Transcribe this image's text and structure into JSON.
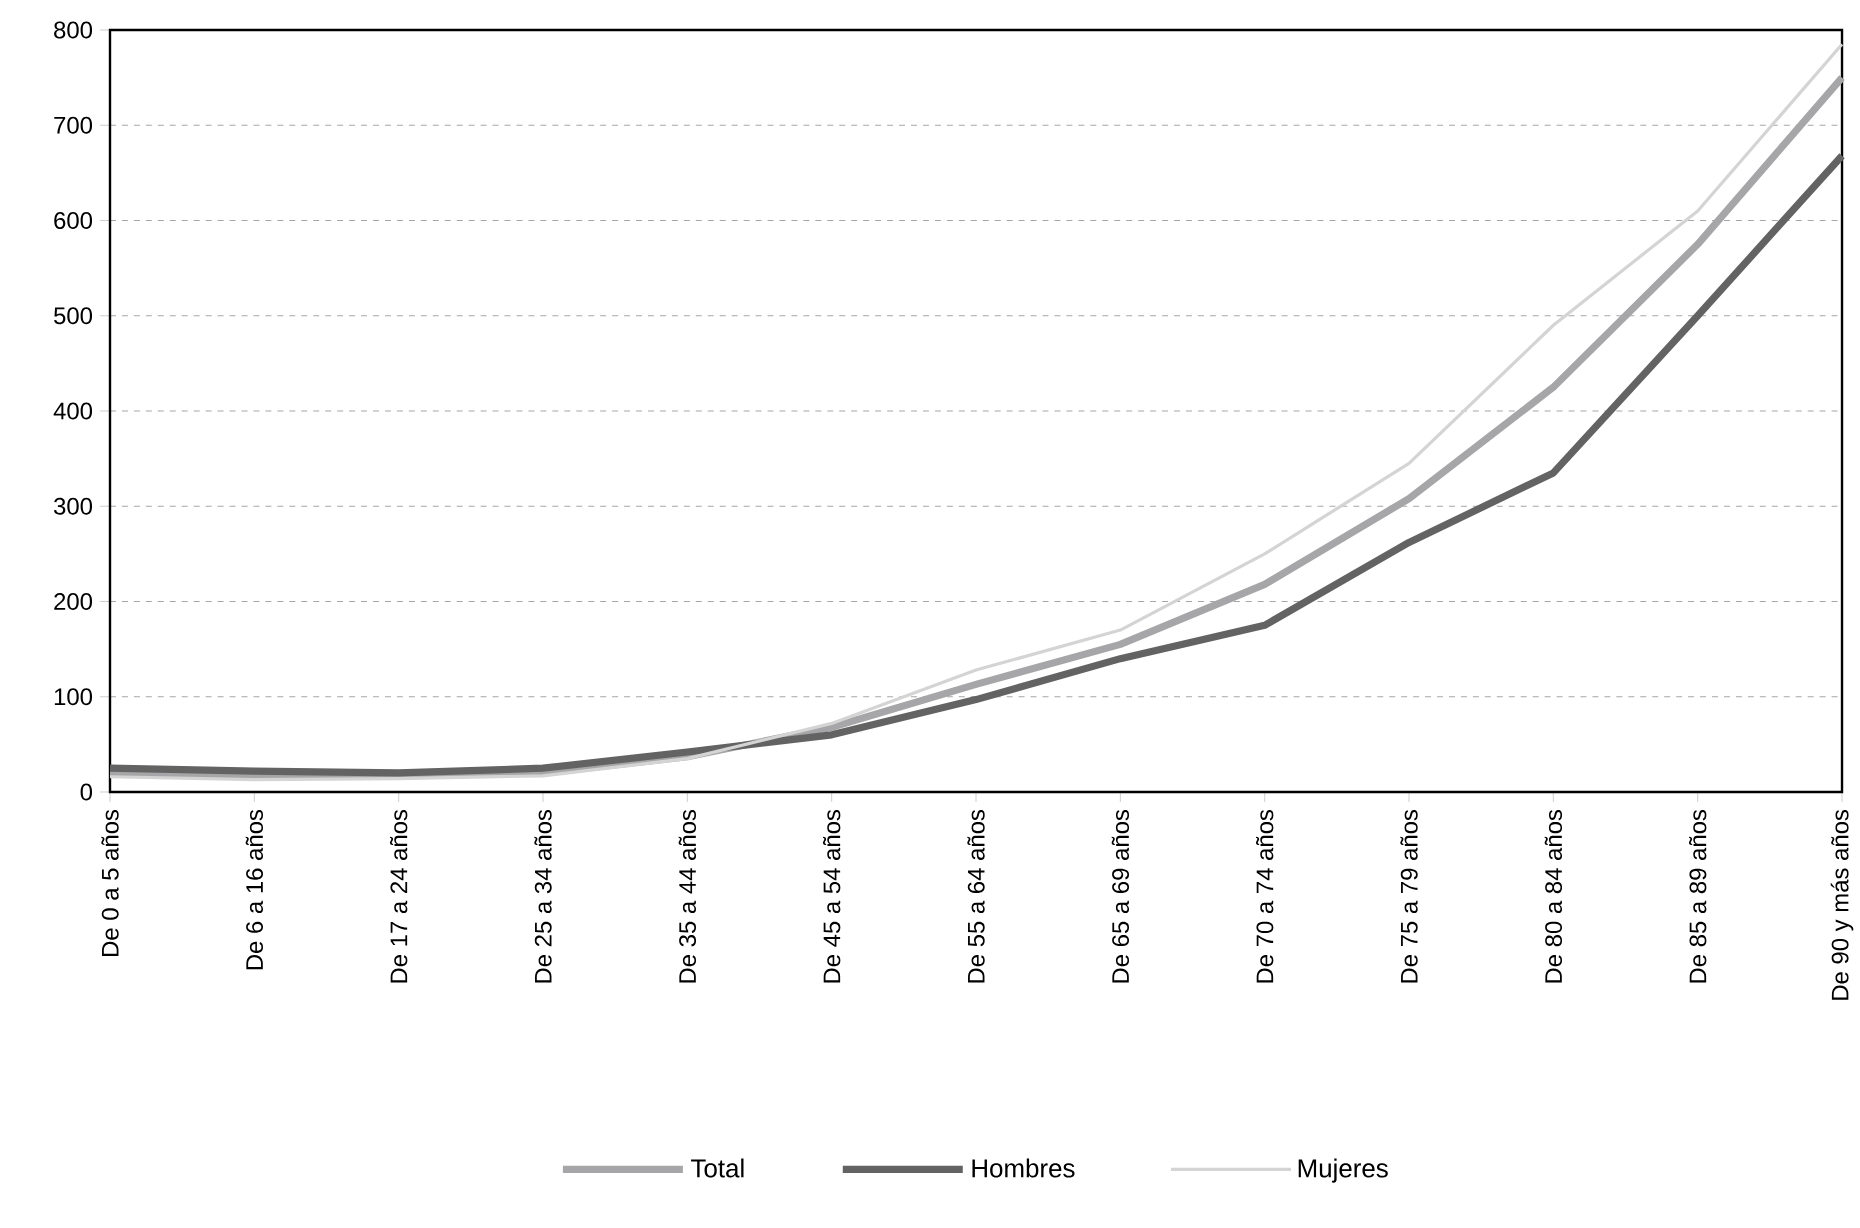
{
  "chart_data": {
    "type": "line",
    "categories": [
      "De 0 a 5 años",
      "De 6 a 16 años",
      "De 17 a 24 años",
      "De 25 a 34 años",
      "De 35 a 44 años",
      "De 45 a 54 años",
      "De 55 a 64 años",
      "De 65 a 69 años",
      "De 70 a 74 años",
      "De 75 a 79 años",
      "De 80 a 84 años",
      "De 85 a 89 años",
      "De 90 y más años"
    ],
    "series": [
      {
        "name": "Total",
        "color": "#a6a6a8",
        "values": [
          20,
          17,
          17,
          20,
          37,
          68,
          113,
          155,
          218,
          308,
          425,
          575,
          750
        ]
      },
      {
        "name": "Hombres",
        "color": "#636363",
        "values": [
          25,
          22,
          20,
          25,
          42,
          60,
          97,
          140,
          175,
          262,
          335,
          500,
          668
        ]
      },
      {
        "name": "Mujeres",
        "color": "#d4d4d4",
        "values": [
          16,
          13,
          14,
          17,
          35,
          72,
          128,
          170,
          250,
          345,
          490,
          610,
          785
        ]
      }
    ],
    "ylim": [
      0,
      800
    ],
    "yticks": [
      0,
      100,
      200,
      300,
      400,
      500,
      600,
      700,
      800
    ],
    "grid": "y",
    "legend": "bottom",
    "marker": "none",
    "line_style": "solid"
  }
}
